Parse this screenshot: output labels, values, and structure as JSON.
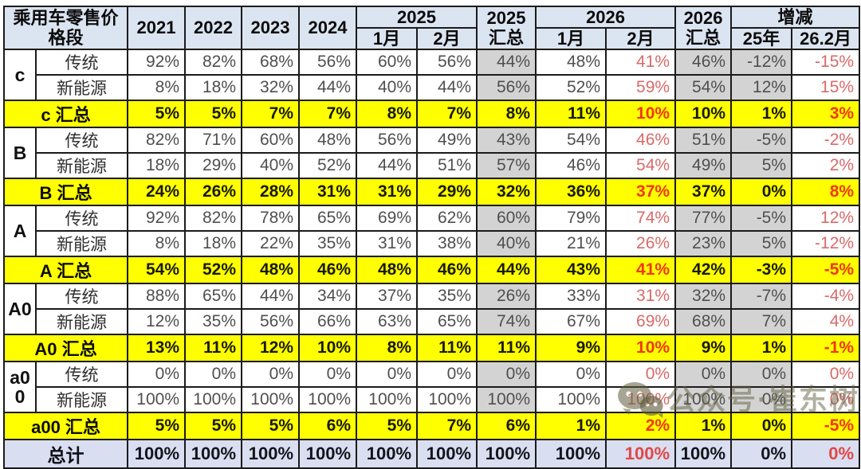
{
  "header": {
    "title_line1": "乘用车零售价",
    "title_line2": "格段",
    "years": [
      "2021",
      "2022",
      "2023",
      "2024"
    ],
    "group_2025": "2025",
    "total_2025_line1": "2025",
    "total_2025_line2": "汇总",
    "group_2026": "2026",
    "total_2026_line1": "2026",
    "total_2026_line2": "汇总",
    "change": "增减",
    "month_jan": "1月",
    "month_feb": "2月",
    "change_25": "25年",
    "change_26_feb": "26.2月"
  },
  "columns": [
    "2021",
    "2022",
    "2023",
    "2024",
    "2025-01",
    "2025-02",
    "2025-total",
    "2026-01",
    "2026-02",
    "2026-total",
    "chg-25",
    "chg-26-02"
  ],
  "highlight": {
    "red_value_columns": [
      8,
      11
    ],
    "gray_value_columns": [
      6,
      9,
      10
    ]
  },
  "styles": {
    "header_blue": "#dbe4f1",
    "subtotal_yellow": "#ffff00",
    "summary_gray": "#d3d3d3",
    "total_lavender": "#d9def0",
    "red_soft": "#d96a6a",
    "red_strong": "#f13800"
  },
  "rows": [
    {
      "type": "data",
      "group": "c",
      "label": "传统",
      "values": [
        "92%",
        "82%",
        "68%",
        "56%",
        "60%",
        "56%",
        "44%",
        "48%",
        "41%",
        "46%",
        "-12%",
        "-15%"
      ]
    },
    {
      "type": "data",
      "label": "新能源",
      "values": [
        "8%",
        "18%",
        "32%",
        "44%",
        "40%",
        "44%",
        "56%",
        "52%",
        "59%",
        "54%",
        "12%",
        "15%"
      ]
    },
    {
      "type": "summary",
      "label": "c 汇总",
      "values": [
        "5%",
        "5%",
        "7%",
        "7%",
        "8%",
        "7%",
        "8%",
        "11%",
        "10%",
        "10%",
        "1%",
        "3%"
      ]
    },
    {
      "type": "data",
      "group": "B",
      "label": "传统",
      "values": [
        "82%",
        "71%",
        "60%",
        "48%",
        "56%",
        "49%",
        "43%",
        "54%",
        "46%",
        "51%",
        "-5%",
        "-2%"
      ]
    },
    {
      "type": "data",
      "label": "新能源",
      "values": [
        "18%",
        "29%",
        "40%",
        "52%",
        "44%",
        "51%",
        "57%",
        "46%",
        "54%",
        "49%",
        "5%",
        "2%"
      ]
    },
    {
      "type": "summary",
      "label": "B 汇总",
      "values": [
        "24%",
        "26%",
        "28%",
        "31%",
        "31%",
        "29%",
        "32%",
        "36%",
        "37%",
        "37%",
        "0%",
        "8%"
      ]
    },
    {
      "type": "data",
      "group": "A",
      "label": "传统",
      "values": [
        "92%",
        "82%",
        "78%",
        "65%",
        "69%",
        "62%",
        "60%",
        "79%",
        "74%",
        "77%",
        "-5%",
        "12%"
      ]
    },
    {
      "type": "data",
      "label": "新能源",
      "values": [
        "8%",
        "18%",
        "22%",
        "35%",
        "31%",
        "38%",
        "40%",
        "21%",
        "26%",
        "23%",
        "5%",
        "-12%"
      ]
    },
    {
      "type": "summary",
      "label": "A 汇总",
      "values": [
        "54%",
        "52%",
        "48%",
        "46%",
        "48%",
        "46%",
        "44%",
        "43%",
        "41%",
        "42%",
        "-3%",
        "-5%"
      ]
    },
    {
      "type": "data",
      "group": "A0",
      "label": "传统",
      "values": [
        "88%",
        "65%",
        "44%",
        "34%",
        "37%",
        "35%",
        "26%",
        "33%",
        "31%",
        "32%",
        "-7%",
        "-4%"
      ]
    },
    {
      "type": "data",
      "label": "新能源",
      "values": [
        "12%",
        "35%",
        "56%",
        "66%",
        "63%",
        "65%",
        "74%",
        "67%",
        "69%",
        "68%",
        "7%",
        "4%"
      ]
    },
    {
      "type": "summary",
      "label": "A0 汇总",
      "values": [
        "13%",
        "11%",
        "12%",
        "10%",
        "8%",
        "11%",
        "11%",
        "9%",
        "10%",
        "9%",
        "1%",
        "-1%"
      ]
    },
    {
      "type": "data",
      "group": "a00",
      "label": "传统",
      "values": [
        "0%",
        "0%",
        "0%",
        "0%",
        "0%",
        "0%",
        "0%",
        "0%",
        "0%",
        "0%",
        "0%",
        "0%"
      ]
    },
    {
      "type": "data",
      "label": "新能源",
      "values": [
        "100%",
        "100%",
        "100%",
        "100%",
        "100%",
        "100%",
        "100%",
        "100%",
        "100%",
        "100%",
        "0%",
        "0%"
      ]
    },
    {
      "type": "summary",
      "label": "a00 汇总",
      "values": [
        "5%",
        "5%",
        "5%",
        "6%",
        "5%",
        "7%",
        "6%",
        "1%",
        "2%",
        "1%",
        "0%",
        "-5%"
      ]
    },
    {
      "type": "total",
      "label": "总计",
      "values": [
        "100%",
        "100%",
        "100%",
        "100%",
        "100%",
        "100%",
        "100%",
        "100%",
        "100%",
        "100%",
        "0%",
        "0%"
      ]
    }
  ],
  "watermark": {
    "text": "公众号·崔东树"
  }
}
